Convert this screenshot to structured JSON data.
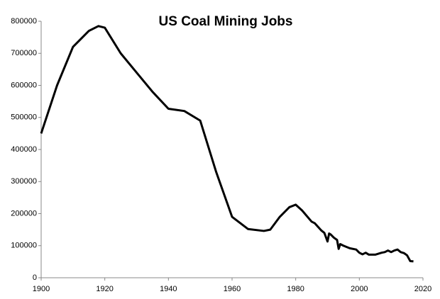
{
  "chart_data": {
    "type": "line",
    "title": "US Coal Mining Jobs",
    "x": [
      1900,
      1905,
      1910,
      1915,
      1918,
      1920,
      1925,
      1930,
      1935,
      1940,
      1945,
      1950,
      1955,
      1960,
      1965,
      1970,
      1972,
      1975,
      1978,
      1980,
      1982,
      1985,
      1986,
      1988,
      1989,
      1990,
      1990.5,
      1991,
      1992,
      1993,
      1993.5,
      1994,
      1995,
      1997,
      1999,
      2000,
      2001,
      2002,
      2003,
      2005,
      2007,
      2008,
      2009,
      2010,
      2011,
      2012,
      2013,
      2014,
      2015,
      2016,
      2017
    ],
    "series": [
      {
        "name": "US Coal Mining Jobs",
        "color": "#000000",
        "values": [
          450000,
          600000,
          720000,
          770000,
          785000,
          780000,
          700000,
          640000,
          580000,
          527000,
          520000,
          490000,
          330000,
          190000,
          152000,
          146000,
          150000,
          190000,
          220000,
          228000,
          210000,
          175000,
          170000,
          148000,
          140000,
          113000,
          138000,
          135000,
          125000,
          118000,
          90000,
          105000,
          100000,
          92000,
          88000,
          78000,
          73000,
          78000,
          72000,
          72000,
          78000,
          80000,
          85000,
          80000,
          85000,
          88000,
          80000,
          77000,
          70000,
          52000,
          51000
        ]
      }
    ],
    "xlim": [
      1900,
      2020
    ],
    "xticks": [
      1900,
      1920,
      1940,
      1960,
      1980,
      2000,
      2020
    ],
    "ylim": [
      0,
      800000
    ],
    "yticks": [
      0,
      100000,
      200000,
      300000,
      400000,
      500000,
      600000,
      700000,
      800000
    ],
    "grid": false
  }
}
